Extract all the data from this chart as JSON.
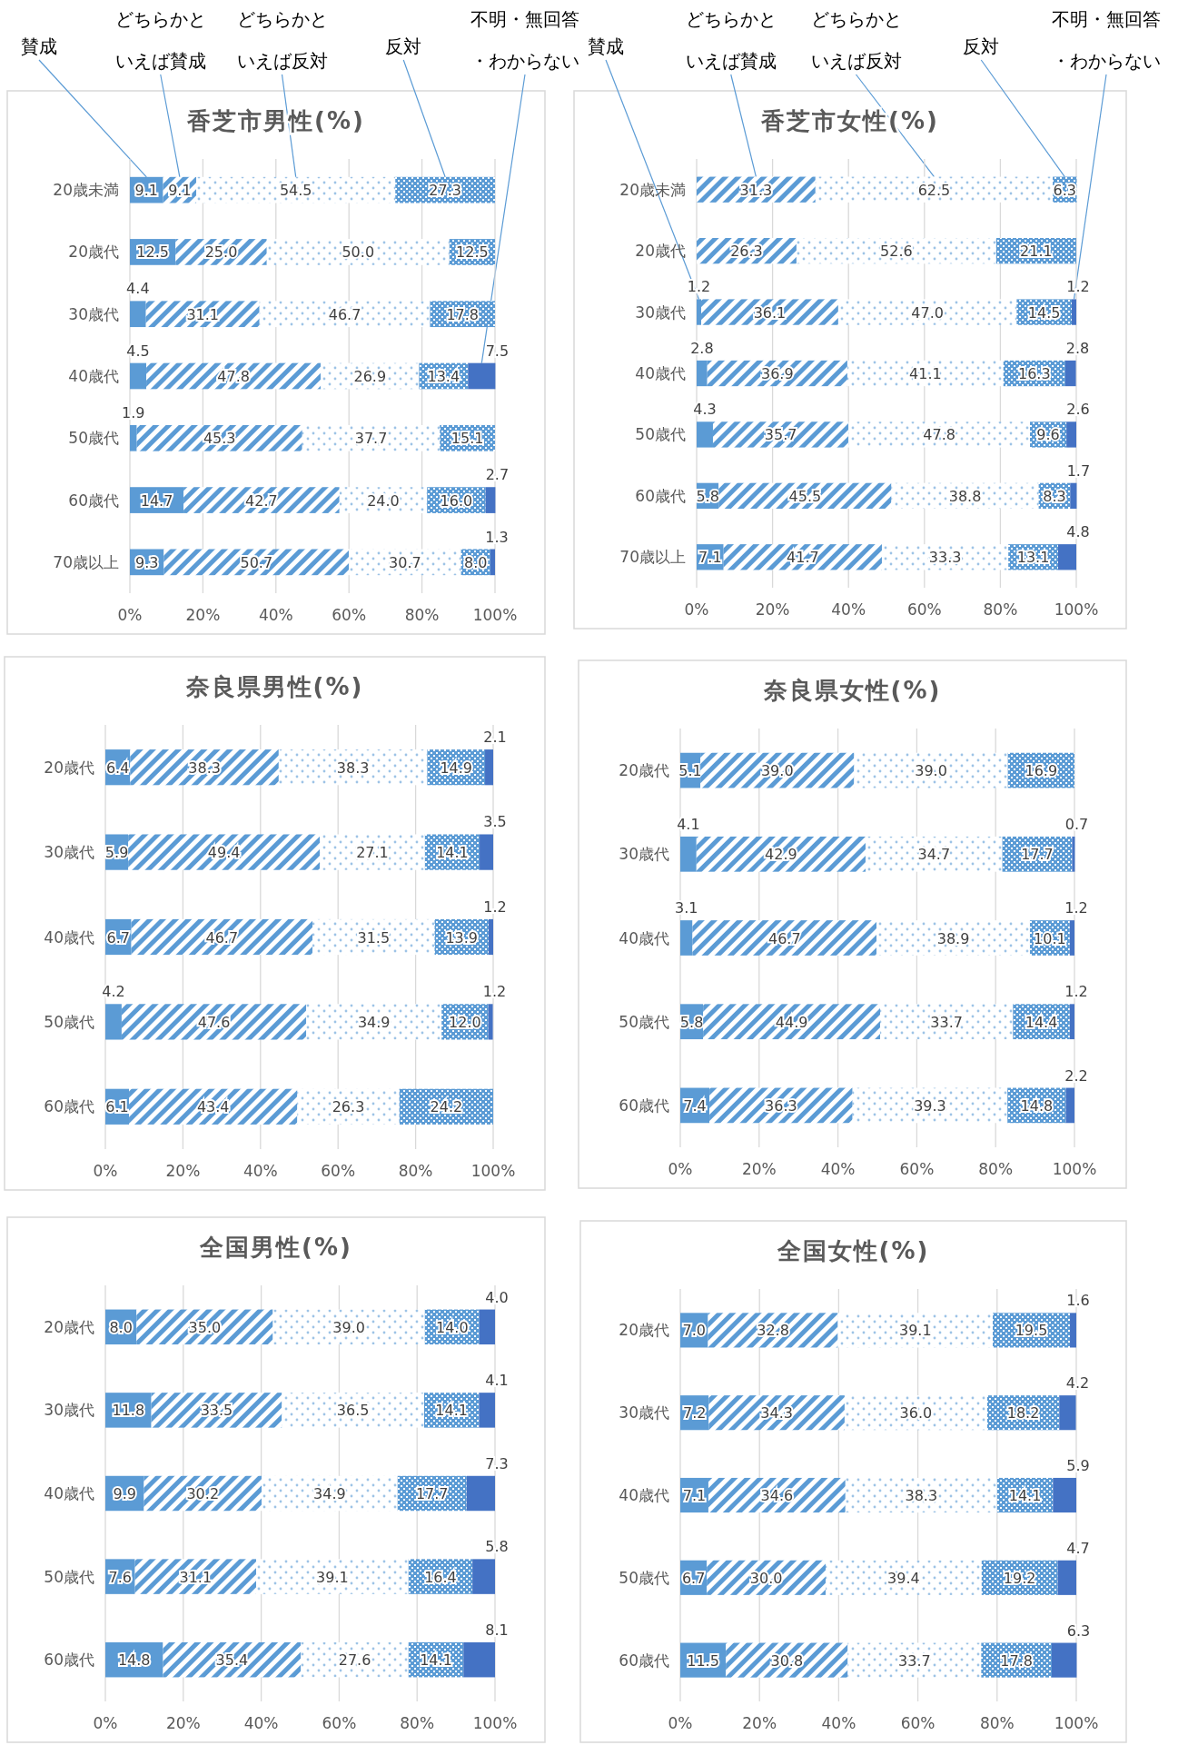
{
  "chart_data": [
    {
      "type": "bar",
      "orientation": "horizontal",
      "stacked": true,
      "grid": "x",
      "title": "香芝市男性(%)",
      "categories": [
        "20歳未満",
        "20歳代",
        "30歳代",
        "40歳代",
        "50歳代",
        "60歳代",
        "70歳以上"
      ],
      "xlim": [
        0,
        100
      ],
      "xticks": [
        {
          "value": 0,
          "label": "0%"
        },
        {
          "value": 20,
          "label": "20%"
        },
        {
          "value": 40,
          "label": "40%"
        },
        {
          "value": 60,
          "label": "60%"
        },
        {
          "value": 80,
          "label": "80%"
        },
        {
          "value": 100,
          "label": "100%"
        }
      ],
      "series": [
        {
          "name": "賛成",
          "color": "#5b9bd5",
          "values": [
            9.1,
            12.5,
            4.4,
            4.5,
            1.9,
            14.7,
            9.3
          ],
          "value_labels": [
            "9.1",
            "12.5",
            "4.4",
            "4.5",
            "1.9",
            "14.7",
            "9.3"
          ]
        },
        {
          "name": "どちらかといえば賛成",
          "color": "#5b9bd5",
          "values": [
            9.1,
            25.0,
            31.1,
            47.8,
            45.3,
            42.7,
            50.7
          ],
          "value_labels": [
            "9.1",
            "25.0",
            "31.1",
            "47.8",
            "45.3",
            "42.7",
            "50.7"
          ]
        },
        {
          "name": "どちらかといえば反対",
          "color": "#9dc3e6",
          "values": [
            54.5,
            50.0,
            46.7,
            26.9,
            37.7,
            24.0,
            30.7
          ],
          "value_labels": [
            "54.5",
            "50.0",
            "46.7",
            "26.9",
            "37.7",
            "24.0",
            "30.7"
          ]
        },
        {
          "name": "反対",
          "color": "#5b9bd5",
          "values": [
            27.3,
            12.5,
            17.8,
            13.4,
            15.1,
            16.0,
            8.0
          ],
          "value_labels": [
            "27.3",
            "12.5",
            "17.8",
            "13.4",
            "15.1",
            "16.0",
            "8.0"
          ]
        },
        {
          "name": "不明・無回答・わからない",
          "color": "#4472c4",
          "values": [
            null,
            null,
            null,
            7.5,
            null,
            2.7,
            1.3
          ],
          "value_labels": [
            null,
            null,
            null,
            "7.5",
            null,
            "2.7",
            "1.3"
          ]
        }
      ]
    },
    {
      "type": "bar",
      "orientation": "horizontal",
      "stacked": true,
      "grid": "x",
      "title": "香芝市女性(%)",
      "categories": [
        "20歳未満",
        "20歳代",
        "30歳代",
        "40歳代",
        "50歳代",
        "60歳代",
        "70歳以上"
      ],
      "xlim": [
        0,
        100
      ],
      "xticks": [
        {
          "value": 0,
          "label": "0%"
        },
        {
          "value": 20,
          "label": "20%"
        },
        {
          "value": 40,
          "label": "40%"
        },
        {
          "value": 60,
          "label": "60%"
        },
        {
          "value": 80,
          "label": "80%"
        },
        {
          "value": 100,
          "label": "100%"
        }
      ],
      "series": [
        {
          "name": "賛成",
          "color": "#5b9bd5",
          "values": [
            null,
            null,
            1.2,
            2.8,
            4.3,
            5.8,
            7.1
          ],
          "value_labels": [
            null,
            null,
            "1.2",
            "2.8",
            "4.3",
            "5.8",
            "7.1"
          ]
        },
        {
          "name": "どちらかといえば賛成",
          "color": "#5b9bd5",
          "values": [
            31.3,
            26.3,
            36.1,
            36.9,
            35.7,
            45.5,
            41.7
          ],
          "value_labels": [
            "31.3",
            "26.3",
            "36.1",
            "36.9",
            "35.7",
            "45.5",
            "41.7"
          ]
        },
        {
          "name": "どちらかといえば反対",
          "color": "#9dc3e6",
          "values": [
            62.5,
            52.6,
            47.0,
            41.1,
            47.8,
            38.8,
            33.3
          ],
          "value_labels": [
            "62.5",
            "52.6",
            "47.0",
            "41.1",
            "47.8",
            "38.8",
            "33.3"
          ]
        },
        {
          "name": "反対",
          "color": "#5b9bd5",
          "values": [
            6.3,
            21.1,
            14.5,
            16.3,
            9.6,
            8.3,
            13.1
          ],
          "value_labels": [
            "6.3",
            "21.1",
            "14.5",
            "16.3",
            "9.6",
            "8.3",
            "13.1"
          ]
        },
        {
          "name": "不明・無回答・わからない",
          "color": "#4472c4",
          "values": [
            null,
            null,
            1.2,
            2.8,
            2.6,
            1.7,
            4.8
          ],
          "value_labels": [
            null,
            null,
            "1.2",
            "2.8",
            "2.6",
            "1.7",
            "4.8"
          ]
        }
      ]
    },
    {
      "type": "bar",
      "orientation": "horizontal",
      "stacked": true,
      "grid": "x",
      "title": "奈良県男性(%)",
      "categories": [
        "20歳代",
        "30歳代",
        "40歳代",
        "50歳代",
        "60歳代"
      ],
      "xlim": [
        0,
        100
      ],
      "xticks": [
        {
          "value": 0,
          "label": "0%"
        },
        {
          "value": 20,
          "label": "20%"
        },
        {
          "value": 40,
          "label": "40%"
        },
        {
          "value": 60,
          "label": "60%"
        },
        {
          "value": 80,
          "label": "80%"
        },
        {
          "value": 100,
          "label": "100%"
        }
      ],
      "series": [
        {
          "color": "#5b9bd5",
          "values": [
            6.4,
            5.9,
            6.7,
            4.2,
            6.1
          ],
          "value_labels": [
            "6.4",
            "5.9",
            "6.7",
            "4.2",
            "6.1"
          ]
        },
        {
          "color": "#5b9bd5",
          "values": [
            38.3,
            49.4,
            46.7,
            47.6,
            43.4
          ],
          "value_labels": [
            "38.3",
            "49.4",
            "46.7",
            "47.6",
            "43.4"
          ]
        },
        {
          "color": "#9dc3e6",
          "values": [
            38.3,
            27.1,
            31.5,
            34.9,
            26.3
          ],
          "value_labels": [
            "38.3",
            "27.1",
            "31.5",
            "34.9",
            "26.3"
          ]
        },
        {
          "color": "#5b9bd5",
          "values": [
            14.9,
            14.1,
            13.9,
            12.0,
            24.2
          ],
          "value_labels": [
            "14.9",
            "14.1",
            "13.9",
            "12.0",
            "24.2"
          ]
        },
        {
          "color": "#4472c4",
          "values": [
            2.1,
            3.5,
            1.2,
            1.2,
            null
          ],
          "value_labels": [
            "2.1",
            "3.5",
            "1.2",
            "1.2",
            null
          ]
        }
      ]
    },
    {
      "type": "bar",
      "orientation": "horizontal",
      "stacked": true,
      "grid": "x",
      "title": "奈良県女性(%)",
      "categories": [
        "20歳代",
        "30歳代",
        "40歳代",
        "50歳代",
        "60歳代"
      ],
      "xlim": [
        0,
        100
      ],
      "xticks": [
        {
          "value": 0,
          "label": "0%"
        },
        {
          "value": 20,
          "label": "20%"
        },
        {
          "value": 40,
          "label": "40%"
        },
        {
          "value": 60,
          "label": "60%"
        },
        {
          "value": 80,
          "label": "80%"
        },
        {
          "value": 100,
          "label": "100%"
        }
      ],
      "series": [
        {
          "color": "#5b9bd5",
          "values": [
            5.1,
            4.1,
            3.1,
            5.8,
            7.4
          ],
          "value_labels": [
            "5.1",
            "4.1",
            "3.1",
            "5.8",
            "7.4"
          ]
        },
        {
          "color": "#5b9bd5",
          "values": [
            39.0,
            42.9,
            46.7,
            44.9,
            36.3
          ],
          "value_labels": [
            "39.0",
            "42.9",
            "46.7",
            "44.9",
            "36.3"
          ]
        },
        {
          "color": "#9dc3e6",
          "values": [
            39.0,
            34.7,
            38.9,
            33.7,
            39.3
          ],
          "value_labels": [
            "39.0",
            "34.7",
            "38.9",
            "33.7",
            "39.3"
          ]
        },
        {
          "color": "#5b9bd5",
          "values": [
            16.9,
            17.7,
            10.1,
            14.4,
            14.8
          ],
          "value_labels": [
            "16.9",
            "17.7",
            "10.1",
            "14.4",
            "14.8"
          ]
        },
        {
          "color": "#4472c4",
          "values": [
            null,
            0.7,
            1.2,
            1.2,
            2.2
          ],
          "value_labels": [
            null,
            "0.7",
            "1.2",
            "1.2",
            "2.2"
          ]
        }
      ]
    },
    {
      "type": "bar",
      "orientation": "horizontal",
      "stacked": true,
      "grid": "x",
      "title": "全国男性(%)",
      "categories": [
        "20歳代",
        "30歳代",
        "40歳代",
        "50歳代",
        "60歳代"
      ],
      "xlim": [
        0,
        100
      ],
      "xticks": [
        {
          "value": 0,
          "label": "0%"
        },
        {
          "value": 20,
          "label": "20%"
        },
        {
          "value": 40,
          "label": "40%"
        },
        {
          "value": 60,
          "label": "60%"
        },
        {
          "value": 80,
          "label": "80%"
        },
        {
          "value": 100,
          "label": "100%"
        }
      ],
      "series": [
        {
          "color": "#5b9bd5",
          "values": [
            8.0,
            11.8,
            9.9,
            7.6,
            14.8
          ],
          "value_labels": [
            "8.0",
            "11.8",
            "9.9",
            "7.6",
            "14.8"
          ]
        },
        {
          "color": "#5b9bd5",
          "values": [
            35.0,
            33.5,
            30.2,
            31.1,
            35.4
          ],
          "value_labels": [
            "35.0",
            "33.5",
            "30.2",
            "31.1",
            "35.4"
          ]
        },
        {
          "color": "#9dc3e6",
          "values": [
            39.0,
            36.5,
            34.9,
            39.1,
            27.6
          ],
          "value_labels": [
            "39.0",
            "36.5",
            "34.9",
            "39.1",
            "27.6"
          ]
        },
        {
          "color": "#5b9bd5",
          "values": [
            14.0,
            14.1,
            17.7,
            16.4,
            14.1
          ],
          "value_labels": [
            "14.0",
            "14.1",
            "17.7",
            "16.4",
            "14.1"
          ]
        },
        {
          "color": "#4472c4",
          "values": [
            4.0,
            4.1,
            7.3,
            5.8,
            8.1
          ],
          "value_labels": [
            "4.0",
            "4.1",
            "7.3",
            "5.8",
            "8.1"
          ]
        }
      ]
    },
    {
      "type": "bar",
      "orientation": "horizontal",
      "stacked": true,
      "grid": "x",
      "title": "全国女性(%)",
      "categories": [
        "20歳代",
        "30歳代",
        "40歳代",
        "50歳代",
        "60歳代"
      ],
      "xlim": [
        0,
        100
      ],
      "xticks": [
        {
          "value": 0,
          "label": "0%"
        },
        {
          "value": 20,
          "label": "20%"
        },
        {
          "value": 40,
          "label": "40%"
        },
        {
          "value": 60,
          "label": "60%"
        },
        {
          "value": 80,
          "label": "80%"
        },
        {
          "value": 100,
          "label": "100%"
        }
      ],
      "series": [
        {
          "color": "#5b9bd5",
          "values": [
            7.0,
            7.2,
            7.1,
            6.7,
            11.5
          ],
          "value_labels": [
            "7.0",
            "7.2",
            "7.1",
            "6.7",
            "11.5"
          ]
        },
        {
          "color": "#5b9bd5",
          "values": [
            32.8,
            34.3,
            34.6,
            30.0,
            30.8
          ],
          "value_labels": [
            "32.8",
            "34.3",
            "34.6",
            "30.0",
            "30.8"
          ]
        },
        {
          "color": "#9dc3e6",
          "values": [
            39.1,
            36.0,
            38.3,
            39.4,
            33.7
          ],
          "value_labels": [
            "39.1",
            "36.0",
            "38.3",
            "39.4",
            "33.7"
          ]
        },
        {
          "color": "#5b9bd5",
          "values": [
            19.5,
            18.2,
            14.1,
            19.2,
            17.8
          ],
          "value_labels": [
            "19.5",
            "18.2",
            "14.1",
            "19.2",
            "17.8"
          ]
        },
        {
          "color": "#4472c4",
          "values": [
            1.6,
            4.2,
            5.9,
            4.7,
            6.3
          ],
          "value_labels": [
            "1.6",
            "4.2",
            "5.9",
            "4.7",
            "6.3"
          ]
        }
      ]
    }
  ]
}
